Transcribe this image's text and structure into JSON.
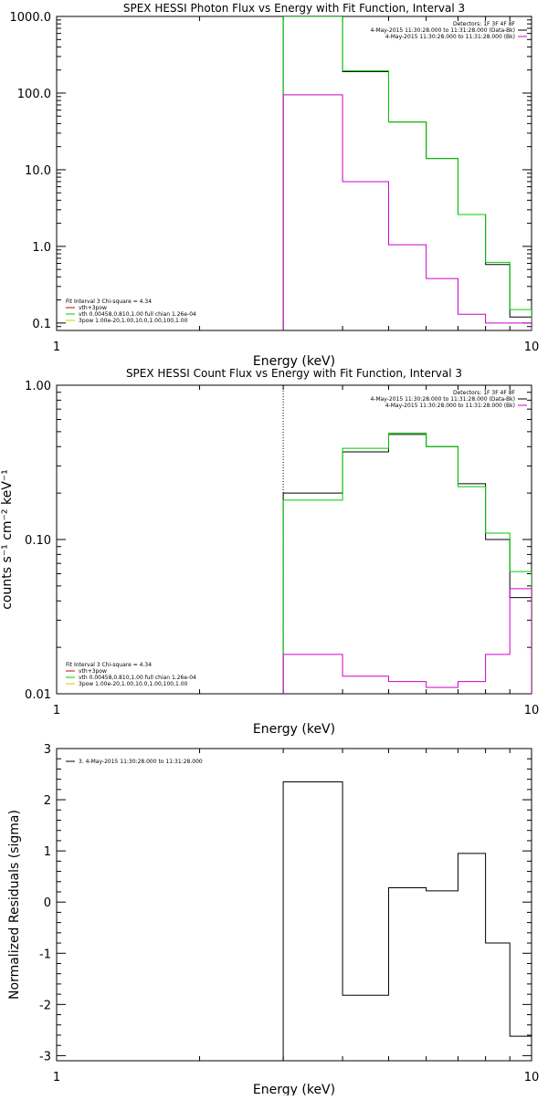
{
  "chart_data": [
    {
      "type": "line",
      "title": "SPEX HESSI Photon Flux vs Energy with Fit Function, Interval 3",
      "xlabel": "Energy (keV)",
      "ylabel": "",
      "x_scale": "log",
      "y_scale": "log",
      "xlim": [
        1,
        10
      ],
      "ylim": [
        0.08,
        1000
      ],
      "xticks": [
        {
          "v": 1,
          "t": "1"
        },
        {
          "v": 10,
          "t": "10"
        }
      ],
      "yticks": [
        {
          "v": 1000,
          "t": "1000.0"
        },
        {
          "v": 100,
          "t": "100.0"
        },
        {
          "v": 10,
          "t": "10.0"
        },
        {
          "v": 1,
          "t": "1.0"
        },
        {
          "v": 0.1,
          "t": "0.1"
        }
      ],
      "vline": 3.0,
      "info_top_right": [
        "Detectors: 1F 3F 4F 8F",
        "4-May-2015 11:30:28.000 to 11:31:28.000 (Data-Bk)",
        "4-May-2015 11:30:28.000 to 11:31:28.000 (Bk)"
      ],
      "legend_bottom_left": [
        "Fit Interval 3   Chi-square = 4.34",
        "vth+3pow",
        "vth 0.00458,0.810,1.00  full chian 1.26e-04",
        "3pow 1.00e-20,1.00,10.0,1.00,100,1.00"
      ],
      "x_edges": [
        3.0,
        4.0,
        5.0,
        6.0,
        7.0,
        8.0,
        9.0,
        10.0
      ],
      "series": [
        {
          "name": "",
          "color": "#000000",
          "values": [
            1000,
            190,
            42,
            14,
            2.6,
            0.58,
            0.12
          ]
        },
        {
          "name": "",
          "color": "#00cc00",
          "values": [
            1000,
            195,
            42,
            14,
            2.6,
            0.62,
            0.15
          ]
        },
        {
          "name": "",
          "color": "#cc00cc",
          "values": [
            95,
            7.0,
            1.05,
            0.38,
            0.13,
            0.1,
            0.1
          ]
        }
      ]
    },
    {
      "type": "line",
      "title": "SPEX HESSI Count Flux vs Energy with Fit Function, Interval 3",
      "xlabel": "Energy (keV)",
      "ylabel": "counts s⁻¹ cm⁻² keV⁻¹",
      "x_scale": "log",
      "y_scale": "log",
      "xlim": [
        1,
        10
      ],
      "ylim": [
        0.01,
        1.0
      ],
      "xticks": [
        {
          "v": 1,
          "t": "1"
        },
        {
          "v": 10,
          "t": "10"
        }
      ],
      "yticks": [
        {
          "v": 1.0,
          "t": "1.00"
        },
        {
          "v": 0.1,
          "t": "0.10"
        },
        {
          "v": 0.01,
          "t": "0.01"
        }
      ],
      "vline": 3.0,
      "info_top_right": [
        "Detectors: 1F 3F 4F 8F",
        "4-May-2015 11:30:28.000 to 11:31:28.000 (Data-Bk)",
        "4-May-2015 11:30:28.000 to 11:31:28.000 (Bk)"
      ],
      "legend_bottom_left": [
        "Fit Interval 3   Chi-square = 4.34",
        "vth+3pow",
        "vth 0.00458,0.810,1.00  full chian 1.26e-04",
        "3pow 1.00e-20,1.00,10.0,1.00,100,1.00"
      ],
      "x_edges": [
        3.0,
        4.0,
        5.0,
        6.0,
        7.0,
        8.0,
        9.0,
        10.0
      ],
      "series": [
        {
          "name": "",
          "color": "#000000",
          "values": [
            0.2,
            0.37,
            0.48,
            0.4,
            0.23,
            0.1,
            0.042
          ]
        },
        {
          "name": "",
          "color": "#00cc00",
          "values": [
            0.18,
            0.39,
            0.49,
            0.4,
            0.22,
            0.11,
            0.062
          ]
        },
        {
          "name": "",
          "color": "#cc00cc",
          "values": [
            0.018,
            0.013,
            0.012,
            0.011,
            0.012,
            0.018,
            0.048
          ]
        }
      ]
    },
    {
      "type": "line",
      "title": "",
      "xlabel": "Energy (keV)",
      "ylabel": "Normalized Residuals (sigma)",
      "x_scale": "log",
      "y_scale": "linear",
      "xlim": [
        1,
        10
      ],
      "ylim": [
        -3.1,
        3.0
      ],
      "xticks": [
        {
          "v": 1,
          "t": "1"
        },
        {
          "v": 10,
          "t": "10"
        }
      ],
      "yticks": [
        {
          "v": 3,
          "t": "3"
        },
        {
          "v": 2,
          "t": "2"
        },
        {
          "v": 1,
          "t": "1"
        },
        {
          "v": 0,
          "t": "0"
        },
        {
          "v": -1,
          "t": "-1"
        },
        {
          "v": -2,
          "t": "-2"
        },
        {
          "v": -3,
          "t": "-3"
        }
      ],
      "legend_top_left": [
        "3.  4-May-2015 11:30:28.000 to 11:31:28.000"
      ],
      "x_edges": [
        3.0,
        4.0,
        5.0,
        6.0,
        7.0,
        8.0,
        9.0,
        10.0
      ],
      "series": [
        {
          "name": "",
          "color": "#000000",
          "values": [
            2.35,
            -1.82,
            0.28,
            0.22,
            0.95,
            -0.8,
            -2.62
          ]
        }
      ]
    }
  ]
}
